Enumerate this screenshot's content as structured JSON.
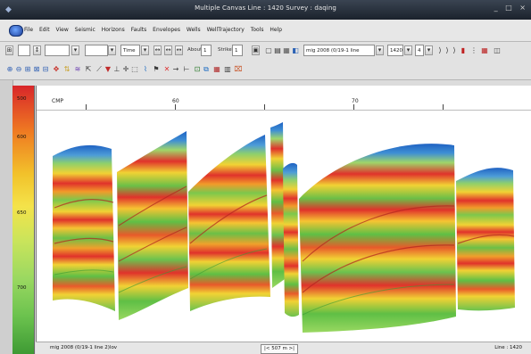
{
  "window": {
    "title": "Multiple Canvas Line : 1420  Survey : daqing",
    "controls": [
      "_",
      "□",
      "×"
    ]
  },
  "menu": [
    "File",
    "Edit",
    "View",
    "Seismic",
    "Horizons",
    "Faults",
    "Envelopes",
    "Wells",
    "WellTrajectory",
    "Tools",
    "Help"
  ],
  "toolbar": {
    "mode_select": "Time",
    "field_a_label": "AboutT",
    "field_a_value": "1",
    "field_b_label": "StrikeT",
    "field_b_value": "1",
    "volume_select": "mig 2008 (0/19-1 line 2)lov",
    "line_value": "1420",
    "step_value": "4"
  },
  "colorbar": {
    "ticks": [
      "500",
      "600",
      "650",
      "700"
    ]
  },
  "ruler": {
    "labels": [
      "CMP",
      "60",
      "70"
    ]
  },
  "status": {
    "left": "mig 2008 (0/19-1 line 2)lov",
    "center": "|<   507 m   >|",
    "right": "Line : 1420"
  },
  "colors": {
    "titlebar": "#1f2733",
    "seismic_high": "#e0322b",
    "seismic_mid": "#f1d234",
    "seismic_low": "#5fbf45",
    "seismic_top": "#1f62c3"
  }
}
